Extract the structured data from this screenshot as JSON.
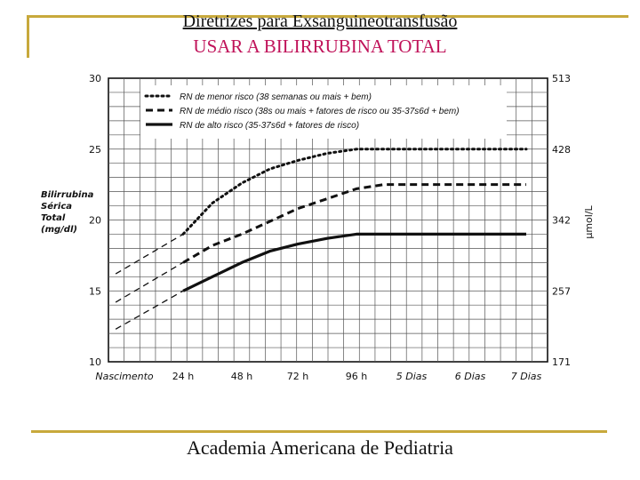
{
  "slide": {
    "title": "Diretrizes para Exsanguineotransfusão",
    "subtitle": "USAR A BILIRRUBINA TOTAL",
    "footer": "Academia Americana de Pediatria"
  },
  "colors": {
    "rule": "#c8a93c",
    "subtitle": "#c0135a"
  },
  "chart_data": {
    "type": "line",
    "x_categories": [
      "Nascimento",
      "24 h",
      "48 h",
      "72 h",
      "96 h",
      "5 Dias",
      "6 Dias",
      "7 Dias"
    ],
    "ylim": [
      10,
      30
    ],
    "yticks": [
      "10",
      "15",
      "20",
      "25",
      "30"
    ],
    "y2ticks": [
      "171",
      "257",
      "342",
      "428",
      "513"
    ],
    "ylabel_lines": [
      "Bilirrubina",
      "Sérica",
      "Total",
      "(mg/dl)"
    ],
    "y2label": "µmol/L",
    "grid": true,
    "legend_position": "top",
    "series": [
      {
        "name": "RN de menor risco (38 semanas ou mais + bem)",
        "style": "dotted",
        "extrapolated": [
          [
            -0.15,
            16.2
          ],
          [
            1.0,
            19.0
          ]
        ],
        "points": [
          [
            1.0,
            19.0
          ],
          [
            1.5,
            21.2
          ],
          [
            2.0,
            22.6
          ],
          [
            2.5,
            23.6
          ],
          [
            3.0,
            24.2
          ],
          [
            3.5,
            24.7
          ],
          [
            4.0,
            25.0
          ],
          [
            4.5,
            25.0
          ],
          [
            5.0,
            25.0
          ],
          [
            6.0,
            25.0
          ],
          [
            7.0,
            25.0
          ]
        ]
      },
      {
        "name": "RN de médio risco (38s ou mais + fatores de risco ou 35-37s6d + bem)",
        "style": "dashed",
        "extrapolated": [
          [
            -0.15,
            14.2
          ],
          [
            1.0,
            17.0
          ]
        ],
        "points": [
          [
            1.0,
            17.0
          ],
          [
            1.5,
            18.2
          ],
          [
            2.0,
            19.0
          ],
          [
            2.5,
            19.9
          ],
          [
            3.0,
            20.8
          ],
          [
            3.5,
            21.5
          ],
          [
            4.0,
            22.2
          ],
          [
            4.5,
            22.5
          ],
          [
            5.0,
            22.5
          ],
          [
            6.0,
            22.5
          ],
          [
            7.0,
            22.5
          ]
        ]
      },
      {
        "name": "RN de alto risco (35-37s6d + fatores de risco)",
        "style": "solid",
        "extrapolated": [
          [
            -0.15,
            12.3
          ],
          [
            1.0,
            15.0
          ]
        ],
        "points": [
          [
            1.0,
            15.0
          ],
          [
            1.5,
            16.0
          ],
          [
            2.0,
            17.0
          ],
          [
            2.5,
            17.8
          ],
          [
            3.0,
            18.3
          ],
          [
            3.5,
            18.7
          ],
          [
            4.0,
            19.0
          ],
          [
            4.5,
            19.0
          ],
          [
            5.0,
            19.0
          ],
          [
            6.0,
            19.0
          ],
          [
            7.0,
            19.0
          ]
        ]
      }
    ]
  }
}
